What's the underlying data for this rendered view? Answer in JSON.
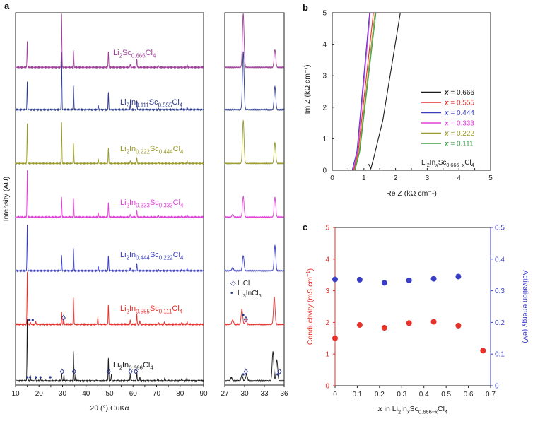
{
  "colors": {
    "black": "#1a1a1a",
    "red": "#e8302b",
    "blue": "#3a3ec4",
    "magenta": "#e040d8",
    "olive": "#9a9a2a",
    "green": "#3aa04a",
    "navy": "#2e3a8c",
    "purple": "#a0409a",
    "axis_red": "#e8302b",
    "axis_blue": "#3a3ec4"
  },
  "panel_letters": {
    "a": "a",
    "b": "b",
    "c": "c"
  },
  "chart_data": [
    {
      "id": "a-main",
      "type": "line",
      "xlabel": "2θ (°) CuKα",
      "ylabel": "Intensity (AU)",
      "xlim": [
        10,
        90
      ],
      "xticks": [
        "10",
        "15",
        "20",
        "25",
        "30",
        "35",
        "40",
        "45",
        "50",
        "55",
        "60",
        "65",
        "70",
        "75",
        "80",
        "85",
        "90"
      ],
      "series": [
        {
          "name": "Li2In0.666Cl4",
          "color_key": "black",
          "peaks": [
            [
              15.0,
              1.0
            ],
            [
              16.3,
              0.08
            ],
            [
              18.5,
              0.06
            ],
            [
              20.6,
              0.05
            ],
            [
              29.6,
              0.12
            ],
            [
              30.6,
              0.09
            ],
            [
              34.7,
              0.46
            ],
            [
              35.6,
              0.1
            ],
            [
              49.5,
              0.36
            ],
            [
              50.8,
              0.1
            ],
            [
              58.8,
              0.1
            ],
            [
              61.6,
              0.14
            ],
            [
              62.9,
              0.06
            ],
            [
              70.5,
              0.03
            ],
            [
              73.5,
              0.05
            ],
            [
              80.6,
              0.03
            ],
            [
              82.9,
              0.05
            ]
          ]
        },
        {
          "name": "Li2In0.555Sc0.111Cl4",
          "color_key": "red",
          "peaks": [
            [
              15.0,
              0.95
            ],
            [
              16.3,
              0.04
            ],
            [
              18.6,
              0.05
            ],
            [
              29.6,
              0.22
            ],
            [
              30.5,
              0.1
            ],
            [
              34.7,
              0.46
            ],
            [
              45.0,
              0.12
            ],
            [
              49.5,
              0.34
            ],
            [
              58.8,
              0.08
            ],
            [
              61.6,
              0.18
            ],
            [
              62.9,
              0.06
            ],
            [
              70.8,
              0.03
            ],
            [
              73.3,
              0.04
            ],
            [
              80.7,
              0.03
            ],
            [
              83.0,
              0.05
            ]
          ]
        },
        {
          "name": "Li2In0.444Sc0.222Cl4",
          "color_key": "blue",
          "peaks": [
            [
              15.0,
              0.95
            ],
            [
              29.6,
              0.3
            ],
            [
              34.7,
              0.45
            ],
            [
              45.2,
              0.1
            ],
            [
              49.5,
              0.3
            ],
            [
              58.8,
              0.06
            ],
            [
              61.6,
              0.14
            ],
            [
              70.8,
              0.03
            ],
            [
              80.7,
              0.03
            ],
            [
              83.0,
              0.05
            ]
          ]
        },
        {
          "name": "Li2In0.333Sc0.333Cl4",
          "color_key": "magenta",
          "peaks": [
            [
              15.0,
              1.0
            ],
            [
              29.6,
              0.4
            ],
            [
              34.7,
              0.4
            ],
            [
              45.2,
              0.08
            ],
            [
              49.5,
              0.3
            ],
            [
              58.8,
              0.06
            ],
            [
              61.6,
              0.14
            ],
            [
              70.8,
              0.03
            ],
            [
              80.7,
              0.03
            ],
            [
              83.0,
              0.05
            ]
          ]
        },
        {
          "name": "Li2In0.222Sc0.444Cl4",
          "color_key": "olive",
          "peaks": [
            [
              15.0,
              0.92
            ],
            [
              29.6,
              0.92
            ],
            [
              34.7,
              0.46
            ],
            [
              45.2,
              0.1
            ],
            [
              49.5,
              0.34
            ],
            [
              58.8,
              0.06
            ],
            [
              61.6,
              0.14
            ],
            [
              70.8,
              0.03
            ],
            [
              80.7,
              0.03
            ],
            [
              83.0,
              0.05
            ]
          ]
        },
        {
          "name": "Li2In0.111Sc0.555Cl4",
          "color_key": "navy",
          "peaks": [
            [
              15.0,
              0.5
            ],
            [
              29.6,
              1.0
            ],
            [
              34.7,
              0.42
            ],
            [
              45.2,
              0.08
            ],
            [
              49.5,
              0.3
            ],
            [
              58.8,
              0.08
            ],
            [
              61.6,
              0.16
            ],
            [
              70.8,
              0.03
            ],
            [
              80.7,
              0.03
            ],
            [
              83.0,
              0.05
            ]
          ]
        },
        {
          "name": "Li2Sc0.666Cl4",
          "color_key": "purple",
          "peaks": [
            [
              15.0,
              0.5
            ],
            [
              29.6,
              1.0
            ],
            [
              34.7,
              0.32
            ],
            [
              49.5,
              0.3
            ],
            [
              58.8,
              0.06
            ],
            [
              61.6,
              0.16
            ],
            [
              70.8,
              0.03
            ],
            [
              83.0,
              0.05
            ]
          ]
        }
      ],
      "labels": [
        {
          "base": "Li",
          "parts": [
            [
              "2",
              ""
            ],
            [
              "In",
              ""
            ],
            [
              "0.666",
              ""
            ],
            [
              "Cl",
              ""
            ],
            [
              "4",
              ""
            ]
          ]
        }
      ],
      "label_text": [
        [
          [
            "Li",
            0
          ],
          [
            "2",
            1
          ],
          [
            "In",
            0
          ],
          [
            "0.666",
            1
          ],
          [
            "Cl",
            0
          ],
          [
            "4",
            1
          ]
        ],
        [
          [
            "Li",
            0
          ],
          [
            "2",
            1
          ],
          [
            "In",
            0
          ],
          [
            "0.555",
            1
          ],
          [
            "Sc",
            0
          ],
          [
            "0.111",
            1
          ],
          [
            "Cl",
            0
          ],
          [
            "4",
            1
          ]
        ],
        [
          [
            "Li",
            0
          ],
          [
            "2",
            1
          ],
          [
            "In",
            0
          ],
          [
            "0.444",
            1
          ],
          [
            "Sc",
            0
          ],
          [
            "0.222",
            1
          ],
          [
            "Cl",
            0
          ],
          [
            "4",
            1
          ]
        ],
        [
          [
            "Li",
            0
          ],
          [
            "2",
            1
          ],
          [
            "In",
            0
          ],
          [
            "0.333",
            1
          ],
          [
            "Sc",
            0
          ],
          [
            "0.333",
            1
          ],
          [
            "Cl",
            0
          ],
          [
            "4",
            1
          ]
        ],
        [
          [
            "Li",
            0
          ],
          [
            "2",
            1
          ],
          [
            "In",
            0
          ],
          [
            "0.222",
            1
          ],
          [
            "Sc",
            0
          ],
          [
            "0.444",
            1
          ],
          [
            "Cl",
            0
          ],
          [
            "4",
            1
          ]
        ],
        [
          [
            "Li",
            0
          ],
          [
            "2",
            1
          ],
          [
            "In",
            0
          ],
          [
            "0.111",
            1
          ],
          [
            "Sc",
            0
          ],
          [
            "0.555",
            1
          ],
          [
            "Cl",
            0
          ],
          [
            "4",
            1
          ]
        ],
        [
          [
            "Li",
            0
          ],
          [
            "2",
            1
          ],
          [
            "Sc",
            0
          ],
          [
            "0.666",
            1
          ],
          [
            "Cl",
            0
          ],
          [
            "4",
            1
          ]
        ]
      ],
      "markers": {
        "series0_diamonds": [
          29.8,
          34.9,
          49.6,
          58.9,
          61.2
        ],
        "series0_dots": [
          15.0,
          16.2,
          18.6,
          20.6,
          24.8
        ],
        "series1_diamonds": [
          30.4
        ],
        "series1_dots": [
          15.9,
          17.3
        ]
      }
    },
    {
      "id": "a-zoom",
      "type": "line",
      "xlim": [
        27,
        36
      ],
      "xticks": [
        "27",
        "30",
        "33",
        "36"
      ],
      "series_peaks": [
        [
          [
            28.0,
            0.05
          ],
          [
            29.6,
            0.09
          ],
          [
            30.3,
            0.1
          ],
          [
            34.3,
            0.45
          ],
          [
            34.9,
            0.32
          ]
        ],
        [
          [
            28.2,
            0.08
          ],
          [
            29.6,
            0.26
          ],
          [
            30.2,
            0.1
          ],
          [
            34.5,
            0.47
          ]
        ],
        [
          [
            28.2,
            0.06
          ],
          [
            29.8,
            0.3
          ],
          [
            34.6,
            0.5
          ]
        ],
        [
          [
            28.2,
            0.05
          ],
          [
            29.8,
            0.42
          ],
          [
            34.6,
            0.4
          ]
        ],
        [
          [
            29.8,
            0.95
          ],
          [
            34.6,
            0.46
          ]
        ],
        [
          [
            29.8,
            1.0
          ],
          [
            34.6,
            0.4
          ]
        ],
        [
          [
            29.8,
            1.0
          ],
          [
            34.6,
            0.33
          ]
        ]
      ],
      "legend": [
        {
          "symbol": "◇",
          "text": [
            [
              "LiCl",
              0
            ]
          ]
        },
        {
          "symbol": "•",
          "text": [
            [
              "Li",
              0
            ],
            [
              "3",
              1
            ],
            [
              "InCl",
              0
            ],
            [
              "6",
              1
            ]
          ]
        }
      ],
      "markers": {
        "series0_diamonds": [
          30.2,
          35.3
        ],
        "series0_dots": [
          29.8,
          35.0
        ],
        "series1_diamonds": [
          30.2
        ],
        "series1_dots": [
          29.8
        ]
      }
    },
    {
      "id": "b",
      "type": "line",
      "xlabel": "Re Z (kΩ cm⁻¹)",
      "ylabel": "−Im Z (kΩ cm⁻¹)",
      "xlim": [
        0,
        5
      ],
      "ylim": [
        0,
        5
      ],
      "xticks": [
        "0",
        "0.5",
        "1",
        "1.5",
        "2",
        "2.5",
        "3",
        "3.5",
        "4",
        "4.5",
        "5"
      ],
      "yticks": [
        "0",
        "1",
        "2",
        "3",
        "4",
        "5"
      ],
      "series": [
        {
          "name": "x = 0.666",
          "color_key": "black",
          "points": [
            [
              1.15,
              0.2
            ],
            [
              1.22,
              0.05
            ],
            [
              1.3,
              0.35
            ],
            [
              1.6,
              1.6
            ],
            [
              2.15,
              5.0
            ]
          ]
        },
        {
          "name": "x = 0.555",
          "color_key": "red",
          "points": [
            [
              0.68,
              0.0
            ],
            [
              0.82,
              0.6
            ],
            [
              1.3,
              5.0
            ]
          ]
        },
        {
          "name": "x = 0.444",
          "color_key": "blue",
          "points": [
            [
              0.63,
              0.0
            ],
            [
              0.78,
              0.6
            ],
            [
              1.18,
              5.0
            ]
          ]
        },
        {
          "name": "x = 0.333",
          "color_key": "magenta",
          "points": [
            [
              0.66,
              0.0
            ],
            [
              0.8,
              0.6
            ],
            [
              1.2,
              5.0
            ]
          ]
        },
        {
          "name": "x = 0.222",
          "color_key": "olive",
          "points": [
            [
              0.7,
              0.0
            ],
            [
              0.85,
              0.6
            ],
            [
              1.35,
              5.0
            ]
          ]
        },
        {
          "name": "x = 0.111",
          "color_key": "green",
          "points": [
            [
              0.72,
              0.0
            ],
            [
              0.87,
              0.6
            ],
            [
              1.38,
              5.0
            ]
          ]
        }
      ],
      "legend_names": [
        [
          [
            "x",
            2
          ],
          [
            " = 0.666",
            0
          ]
        ],
        [
          [
            "x",
            2
          ],
          [
            " = 0.555",
            0
          ]
        ],
        [
          [
            "x",
            2
          ],
          [
            " = 0.444",
            0
          ]
        ],
        [
          [
            "x",
            2
          ],
          [
            " = 0.333",
            0
          ]
        ],
        [
          [
            "x",
            2
          ],
          [
            " = 0.222",
            0
          ]
        ],
        [
          [
            "x",
            2
          ],
          [
            " = 0.111",
            0
          ]
        ]
      ],
      "legend_title": [
        [
          "Li",
          0
        ],
        [
          "2",
          1
        ],
        [
          "In",
          0
        ],
        [
          "x",
          3
        ],
        [
          "Sc",
          0
        ],
        [
          "0.666−x",
          1
        ],
        [
          "Cl",
          0
        ],
        [
          "4",
          1
        ]
      ],
      "legend": "right"
    },
    {
      "id": "c",
      "type": "scatter",
      "xlabel": [
        [
          "x",
          2
        ],
        [
          " in Li",
          0
        ],
        [
          "2",
          1
        ],
        [
          "In",
          0
        ],
        [
          "x",
          3
        ],
        [
          "Sc",
          0
        ],
        [
          "0.666−x",
          1
        ],
        [
          "Cl",
          0
        ],
        [
          "4",
          1
        ]
      ],
      "ylabel_left": [
        [
          "Conductivity (mS cm",
          0
        ],
        [
          "−1",
          4
        ],
        [
          ")",
          0
        ]
      ],
      "ylabel_right": "Activation energy (eV)",
      "xlim": [
        0,
        0.7
      ],
      "ylim_left": [
        0,
        5
      ],
      "ylim_right": [
        0,
        0.5
      ],
      "xticks": [
        "0",
        "0.1",
        "0.2",
        "0.3",
        "0.4",
        "0.5",
        "0.6",
        "0.7"
      ],
      "yticks_left": [
        "0",
        "1",
        "2",
        "3",
        "4",
        "5"
      ],
      "yticks_right": [
        "0",
        "0.1",
        "0.2",
        "0.3",
        "0.4",
        "0.5"
      ],
      "series": [
        {
          "name": "Conductivity",
          "color_key": "axis_red",
          "axis": "left",
          "x": [
            0,
            0.111,
            0.222,
            0.333,
            0.444,
            0.555,
            0.666
          ],
          "y": [
            1.5,
            1.92,
            1.83,
            1.98,
            2.02,
            1.9,
            1.11
          ]
        },
        {
          "name": "Activation energy",
          "color_key": "axis_blue",
          "axis": "right",
          "x": [
            0,
            0.111,
            0.222,
            0.333,
            0.444,
            0.555
          ],
          "y": [
            0.336,
            0.335,
            0.325,
            0.333,
            0.338,
            0.345
          ]
        }
      ]
    }
  ]
}
